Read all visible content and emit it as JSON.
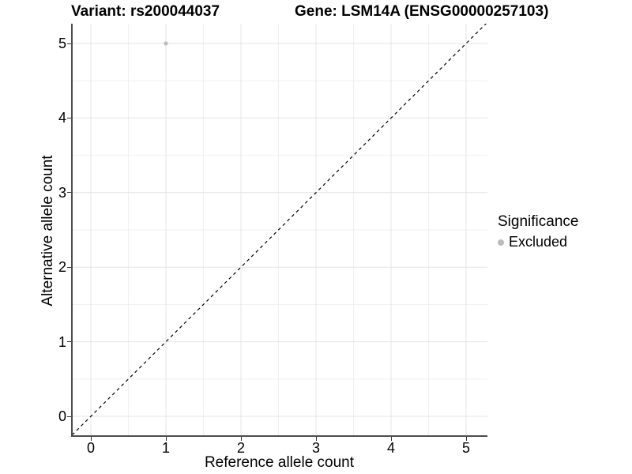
{
  "titles": {
    "variant": "Variant: rs200044037",
    "gene": "Gene: LSM14A (ENSG00000257103)"
  },
  "axes": {
    "x": {
      "label": "Reference allele count",
      "tick_labels": [
        "0",
        "1",
        "2",
        "3",
        "4",
        "5"
      ]
    },
    "y": {
      "label": "Alternative allele count",
      "tick_labels": [
        "0",
        "1",
        "2",
        "3",
        "4",
        "5"
      ]
    }
  },
  "legend": {
    "title": "Significance",
    "items": [
      {
        "label": "Excluded",
        "color": "#bcbcbc"
      }
    ]
  },
  "colors": {
    "axis_line": "#4d4d4d",
    "major_grid": "#e4e4e4",
    "minor_grid": "#f0f0f0",
    "reference_line": "#000000",
    "point": "#bcbcbc"
  },
  "chart_data": {
    "type": "scatter",
    "title": "Variant: rs200044037   Gene: LSM14A (ENSG00000257103)",
    "xlabel": "Reference allele count",
    "ylabel": "Alternative allele count",
    "xlim": [
      -0.25,
      5.3
    ],
    "ylim": [
      -0.25,
      5.3
    ],
    "x_ticks": [
      0,
      1,
      2,
      3,
      4,
      5
    ],
    "y_ticks": [
      0,
      1,
      2,
      3,
      4,
      5
    ],
    "x_minor_ticks": [
      0.5,
      1.5,
      2.5,
      3.5,
      4.5
    ],
    "y_minor_ticks": [
      0.5,
      1.5,
      2.5,
      3.5,
      4.5
    ],
    "grid": true,
    "legend_position": "right",
    "series": [
      {
        "name": "Excluded",
        "color": "#bcbcbc",
        "points": [
          {
            "x": 1,
            "y": 5
          }
        ]
      }
    ],
    "reference_line": {
      "slope": 1,
      "intercept": 0,
      "style": "dashed"
    }
  }
}
